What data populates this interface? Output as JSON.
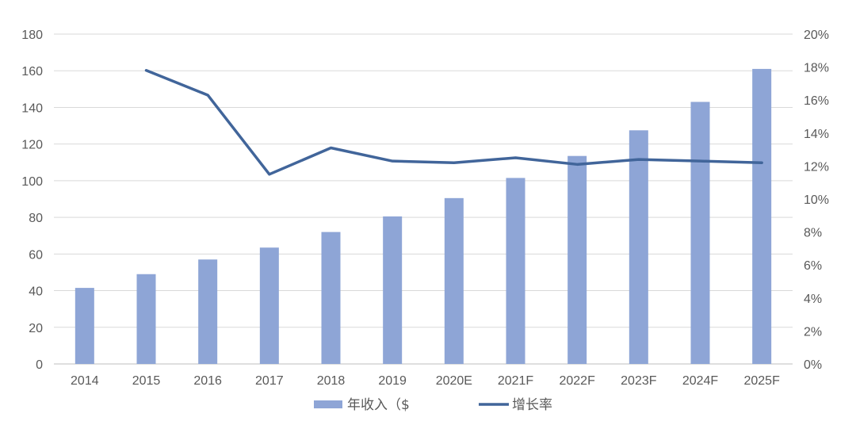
{
  "chart_data": {
    "type": "bar",
    "categories": [
      "2014",
      "2015",
      "2016",
      "2017",
      "2018",
      "2019",
      "2020E",
      "2021F",
      "2022F",
      "2023F",
      "2024F",
      "2025F"
    ],
    "series": [
      {
        "name": "年收入（$",
        "type": "bar",
        "axis": "left",
        "values": [
          41.5,
          49,
          57,
          63.5,
          72,
          80.5,
          90.5,
          101.5,
          113.5,
          127.5,
          143,
          161
        ]
      },
      {
        "name": "增长率",
        "type": "line",
        "axis": "right",
        "values": [
          null,
          17.8,
          16.3,
          11.5,
          13.1,
          12.3,
          12.2,
          12.5,
          12.1,
          12.4,
          12.3,
          12.2
        ]
      }
    ],
    "y_left": {
      "ylim": [
        0,
        180
      ],
      "ticks": [
        "0",
        "20",
        "40",
        "60",
        "80",
        "100",
        "120",
        "140",
        "160",
        "180"
      ]
    },
    "y_right": {
      "ylim": [
        0,
        20
      ],
      "ticks": [
        "0%",
        "2%",
        "4%",
        "6%",
        "8%",
        "10%",
        "12%",
        "14%",
        "16%",
        "18%",
        "20%"
      ]
    },
    "grid": true,
    "legend": {
      "position": "bottom-center",
      "entries": [
        "年收入（$",
        "增长率"
      ]
    },
    "colors": {
      "bar": "#8EA5D6",
      "line": "#41659A",
      "grid": "#D9D9D9",
      "text": "#595959"
    }
  }
}
